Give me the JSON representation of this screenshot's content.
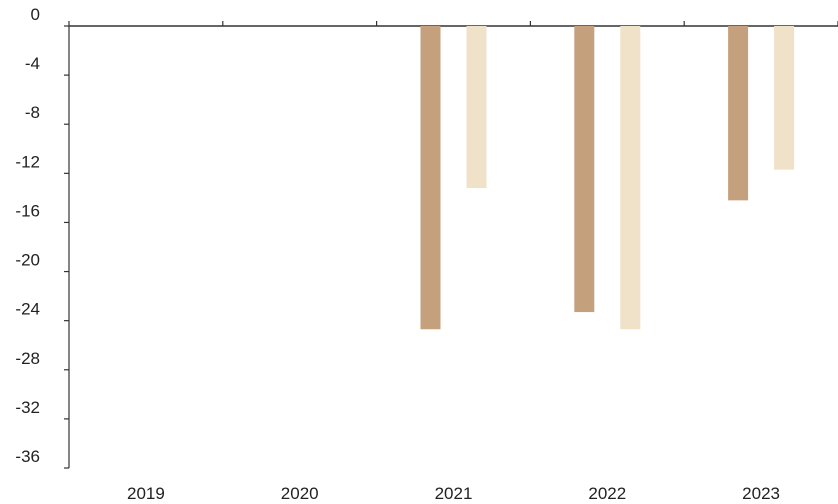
{
  "chart_data": {
    "type": "bar",
    "categories": [
      "2019",
      "2020",
      "2021",
      "2022",
      "2023"
    ],
    "series": [
      {
        "values": [
          null,
          null,
          -24.7,
          -23.3,
          -14.2
        ]
      },
      {
        "values": [
          null,
          null,
          -13.2,
          -24.7,
          -11.7
        ]
      }
    ],
    "y_ticks": [
      "0",
      "-4",
      "-8",
      "-12",
      "-16",
      "-20",
      "-24",
      "-28",
      "-32",
      "-36"
    ],
    "ylim": [
      -36,
      0
    ],
    "xlabel": "",
    "ylabel": "",
    "title": "",
    "grid": false,
    "legend": "none"
  },
  "colors": {
    "series_1": "#c4a07c",
    "series_2": "#f0e2c8",
    "axis": "#333333",
    "text": "#222222"
  }
}
